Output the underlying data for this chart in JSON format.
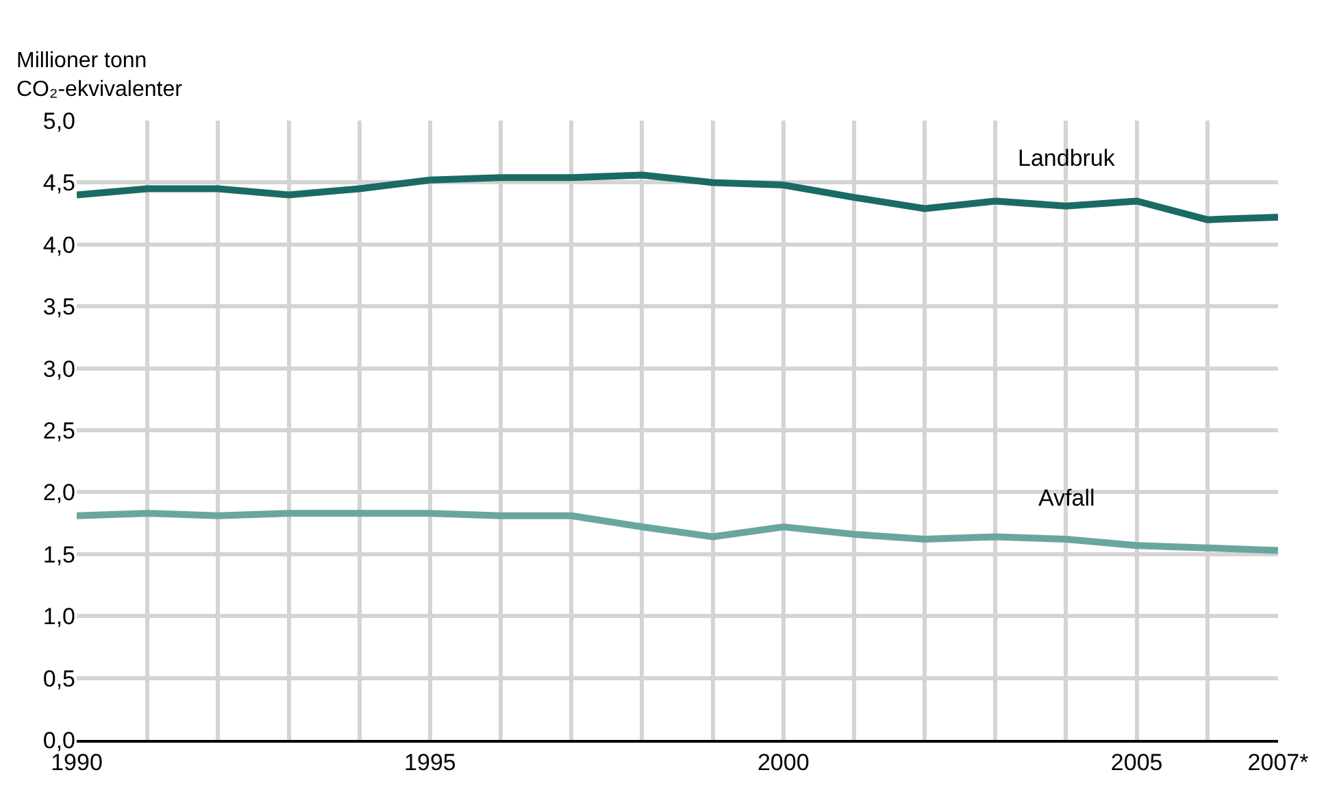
{
  "chart_data": {
    "type": "line",
    "ylabel": "Millioner tonn\nCO₂-ekvivalenter",
    "x": [
      1990,
      1991,
      1992,
      1993,
      1994,
      1995,
      1996,
      1997,
      1998,
      1999,
      2000,
      2001,
      2002,
      2003,
      2004,
      2005,
      2006,
      2007
    ],
    "series": [
      {
        "name": "Landbruk",
        "color": "#1a6b63",
        "values": [
          4.4,
          4.45,
          4.45,
          4.4,
          4.45,
          4.52,
          4.54,
          4.54,
          4.56,
          4.5,
          4.48,
          4.38,
          4.29,
          4.35,
          4.31,
          4.35,
          4.2,
          4.22
        ]
      },
      {
        "name": "Avfall",
        "color": "#6aa6a0",
        "values": [
          1.81,
          1.83,
          1.81,
          1.83,
          1.83,
          1.83,
          1.81,
          1.81,
          1.72,
          1.64,
          1.72,
          1.66,
          1.62,
          1.64,
          1.62,
          1.57,
          1.55,
          1.53
        ]
      }
    ],
    "xlim": [
      1990,
      2007
    ],
    "xticks": [
      1990,
      {
        "value": 1991,
        "label": null
      },
      {
        "value": 1992,
        "label": null
      },
      {
        "value": 1993,
        "label": null
      },
      {
        "value": 1994,
        "label": null
      },
      1995,
      {
        "value": 1996,
        "label": null
      },
      {
        "value": 1997,
        "label": null
      },
      {
        "value": 1998,
        "label": null
      },
      {
        "value": 1999,
        "label": null
      },
      2000,
      {
        "value": 2001,
        "label": null
      },
      {
        "value": 2002,
        "label": null
      },
      {
        "value": 2003,
        "label": null
      },
      {
        "value": 2004,
        "label": null
      },
      2005,
      {
        "value": 2006,
        "label": null
      },
      {
        "value": 2007,
        "label": "2007*"
      }
    ],
    "ylim": [
      0,
      5
    ],
    "yticks": [
      {
        "value": 0,
        "label": "0,0"
      },
      {
        "value": 0.5,
        "label": "0,5"
      },
      {
        "value": 1,
        "label": "1,0"
      },
      {
        "value": 1.5,
        "label": "1,5"
      },
      {
        "value": 2,
        "label": "2,0"
      },
      {
        "value": 2.5,
        "label": "2,5"
      },
      {
        "value": 3,
        "label": "3,0"
      },
      {
        "value": 3.5,
        "label": "3,5"
      },
      {
        "value": 4,
        "label": "4,0"
      },
      {
        "value": 4.5,
        "label": "4,5"
      },
      {
        "value": 5,
        "label": "5,0"
      }
    ],
    "grid": true,
    "legend": false,
    "marker": "none",
    "line_style": "solid"
  }
}
